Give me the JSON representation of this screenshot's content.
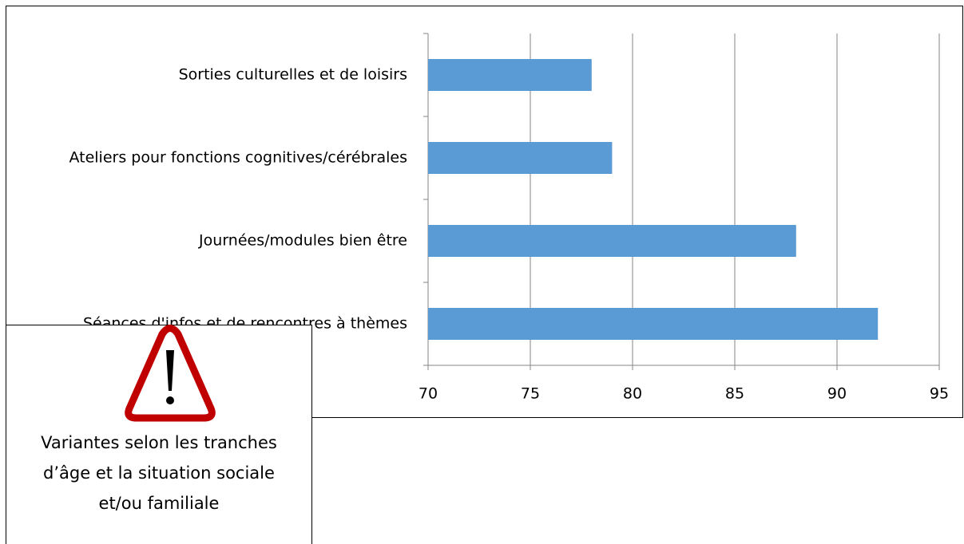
{
  "chart_data": {
    "type": "bar",
    "orientation": "horizontal",
    "categories": [
      "Sorties culturelles et de loisirs",
      "Ateliers pour fonctions cognitives/cérébrales",
      "Journées/modules bien être",
      "Séances d'infos et de rencontres à thèmes"
    ],
    "values": [
      78,
      79,
      88,
      92
    ],
    "color": "#5b9bd5",
    "xlim": [
      70,
      95
    ],
    "xticks": [
      70,
      75,
      80,
      85,
      90,
      95
    ],
    "grid": true,
    "annotation": [
      "Variantes selon les tranches",
      "d’âge et la situation sociale",
      "et/ou familiale"
    ]
  }
}
